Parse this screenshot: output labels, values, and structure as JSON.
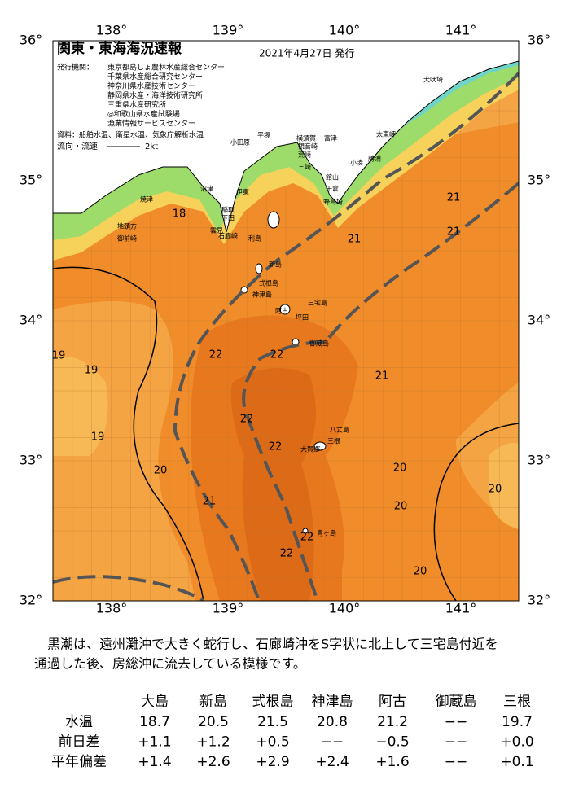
{
  "map": {
    "title": "関東・東海海況速報",
    "date": "2021年4月27日 発行",
    "issuer_label": "発行機関：",
    "issuers": [
      "東京都島しょ農林水産総合センター",
      "千葉県水産総合研究センター",
      "神奈川県水産技術センター",
      "静岡県水産・海洋技術研究所",
      "三重県水産研究所",
      "◎和歌山県水産試験場",
      "漁業情報サービスセンター"
    ],
    "sources": "資料：船舶水温、衛星水温、気象庁解析水温",
    "flow_label": "流向・流速",
    "flow_scale": "2kt",
    "lon_labels": [
      "138°",
      "139°",
      "140°",
      "141°"
    ],
    "lat_labels": [
      "36°",
      "35°",
      "34°",
      "33°",
      "32°"
    ],
    "places": [
      "犬吠埼",
      "太東岬",
      "勝浦",
      "小湊",
      "館山",
      "千倉",
      "野島埼",
      "富津",
      "横須賀",
      "観音崎",
      "荒崎",
      "三崎",
      "平塚",
      "小田原",
      "伊東",
      "沼津",
      "焼津",
      "地頭方",
      "御前崎",
      "下田",
      "稲取",
      "石廊崎",
      "雲見",
      "利島",
      "新島",
      "式根島",
      "神津島",
      "三宅島",
      "阿古",
      "坪田",
      "御蔵島",
      "八丈島",
      "三根",
      "大賀郷",
      "青ヶ島"
    ],
    "isotherm_labels": [
      18,
      19,
      19,
      19,
      20,
      21,
      22,
      22,
      22,
      22,
      22,
      22,
      21,
      21,
      21,
      21,
      20,
      20,
      20,
      20
    ]
  },
  "summary": {
    "lines": [
      "黒潮は、遠州灘沖で大きく蛇行し、石廊崎沖をS字状に北上して三宅島付近を",
      "通過した後、房総沖に流去している模様です。"
    ]
  },
  "table": {
    "columns": [
      "大島",
      "新島",
      "式根島",
      "神津島",
      "阿古",
      "御蔵島",
      "三根"
    ],
    "rows": [
      {
        "label": "水温",
        "values": [
          "18.7",
          "20.5",
          "21.5",
          "20.8",
          "21.2",
          "−−",
          "19.7"
        ]
      },
      {
        "label": "前日差",
        "values": [
          "+1.1",
          "+1.2",
          "+0.5",
          "−−",
          "−0.5",
          "−−",
          "+0.0"
        ]
      },
      {
        "label": "平年偏差",
        "values": [
          "+1.4",
          "+2.6",
          "+2.9",
          "+2.4",
          "+1.6",
          "−−",
          "+0.1"
        ]
      }
    ]
  }
}
